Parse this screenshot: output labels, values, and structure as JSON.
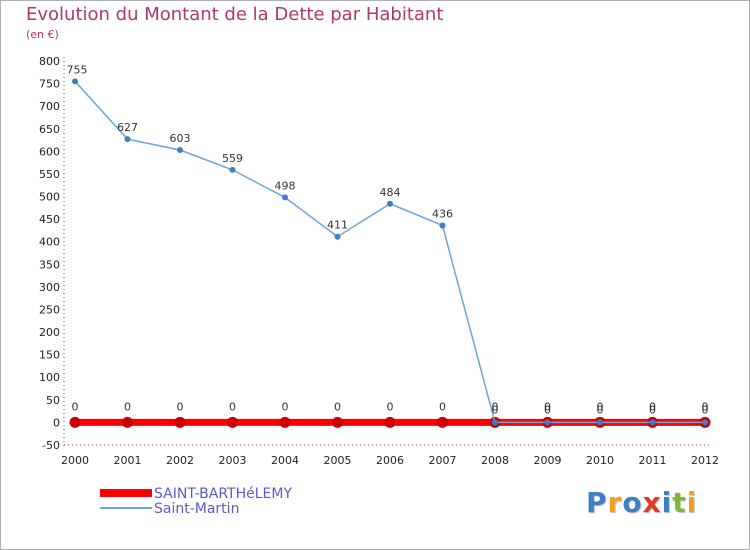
{
  "chart_data": {
    "type": "line",
    "title": "Evolution du Montant de la Dette par Habitant",
    "subtitle": "(en €)",
    "x": [
      "2000",
      "2001",
      "2002",
      "2003",
      "2004",
      "2005",
      "2006",
      "2007",
      "2008",
      "2009",
      "2010",
      "2011",
      "2012"
    ],
    "ylim": [
      -50,
      800
    ],
    "yticks": [
      -50,
      0,
      50,
      100,
      150,
      200,
      250,
      300,
      350,
      400,
      450,
      500,
      550,
      600,
      650,
      700,
      750,
      800
    ],
    "grid": false,
    "legend_placement": "bottom-left",
    "series": [
      {
        "name": "SAINT-BARTHéLEMY",
        "color": "#ff0000",
        "values": [
          0,
          0,
          0,
          0,
          0,
          0,
          0,
          0,
          0,
          0,
          0,
          0,
          0
        ]
      },
      {
        "name": "Saint-Martin",
        "color": "#6fa3d8",
        "values": [
          755,
          627,
          603,
          559,
          498,
          411,
          484,
          436,
          0,
          0,
          0,
          0,
          0
        ]
      }
    ]
  },
  "logo": {
    "letters": [
      {
        "ch": "P",
        "color": "#3e7fc6"
      },
      {
        "ch": "r",
        "color": "#f0a020"
      },
      {
        "ch": "o",
        "color": "#3e7fc6"
      },
      {
        "ch": "x",
        "color": "#e03a2a"
      },
      {
        "ch": "i",
        "color": "#3e7fc6"
      },
      {
        "ch": "t",
        "color": "#7ab83a"
      },
      {
        "ch": "i",
        "color": "#f0a020"
      }
    ]
  }
}
